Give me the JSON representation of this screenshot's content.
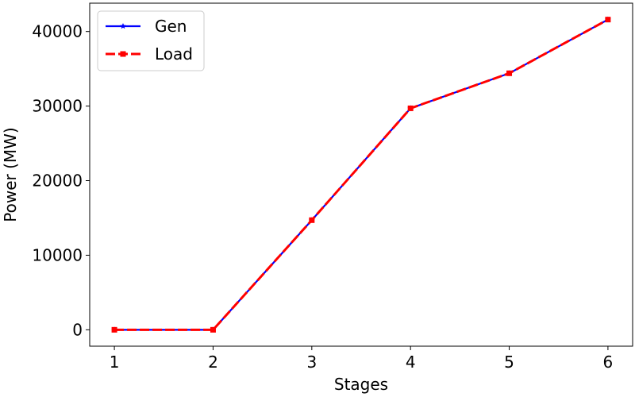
{
  "chart_data": {
    "type": "line",
    "title": "",
    "xlabel": "Stages",
    "ylabel": "Power (MW)",
    "x": [
      1,
      2,
      3,
      4,
      5,
      6
    ],
    "xticks": [
      "1",
      "2",
      "3",
      "4",
      "5",
      "6"
    ],
    "yticks": [
      "0",
      "10000",
      "20000",
      "30000",
      "40000"
    ],
    "ylim": [
      -2200,
      43800
    ],
    "xlim": [
      0.75,
      6.25
    ],
    "grid": false,
    "legend_position": "top-left",
    "series": [
      {
        "name": "Gen",
        "values": [
          0,
          0,
          14700,
          29700,
          34400,
          41600
        ],
        "color": "#0000ff",
        "line_style": "solid",
        "marker": "star"
      },
      {
        "name": "Load",
        "values": [
          0,
          0,
          14700,
          29700,
          34400,
          41600
        ],
        "color": "#ff0000",
        "line_style": "dashed",
        "marker": "square"
      }
    ]
  }
}
